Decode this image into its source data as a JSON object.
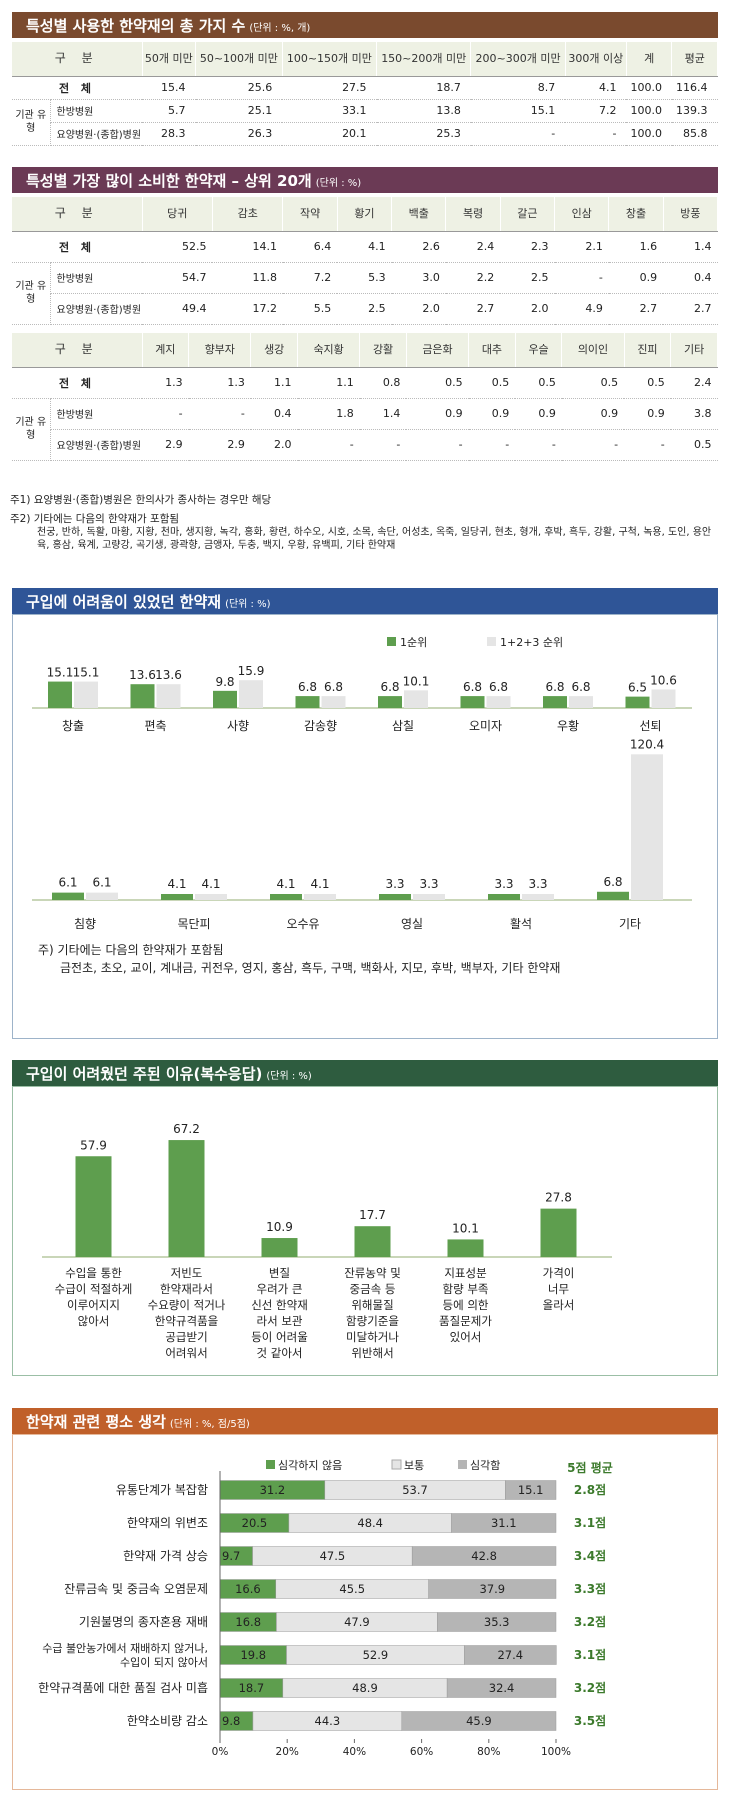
{
  "section1": {
    "title": "특성별 사용한 한약재의 총 가지 수",
    "unit": "(단위 : %, 개)",
    "headers": [
      "구 분",
      "50개 미만",
      "50~100개 미만",
      "100~150개 미만",
      "150~200개 미만",
      "200~300개 미만",
      "300개 이상",
      "계",
      "평균"
    ],
    "group_label": "기관 유형",
    "rows": [
      {
        "label": "전 체",
        "values": [
          "15.4",
          "25.6",
          "27.5",
          "18.7",
          "8.7",
          "4.1",
          "100.0",
          "116.4"
        ]
      },
      {
        "label": "한방병원",
        "values": [
          "5.7",
          "25.1",
          "33.1",
          "13.8",
          "15.1",
          "7.2",
          "100.0",
          "139.3"
        ]
      },
      {
        "label": "요양병원·(종합)병원",
        "values": [
          "28.3",
          "26.3",
          "20.1",
          "25.3",
          "-",
          "-",
          "100.0",
          "85.8"
        ]
      }
    ]
  },
  "section2": {
    "title": "특성별 가장 많이 소비한 한약재 – 상위 20개",
    "unit": "(단위 : %)",
    "group_label": "기관 유형",
    "table_a": {
      "headers": [
        "구 분",
        "당귀",
        "감초",
        "작약",
        "황기",
        "백출",
        "복령",
        "갈근",
        "인삼",
        "창출",
        "방풍"
      ],
      "rows": [
        {
          "label": "전 체",
          "values": [
            "52.5",
            "14.1",
            "6.4",
            "4.1",
            "2.6",
            "2.4",
            "2.3",
            "2.1",
            "1.6",
            "1.4"
          ]
        },
        {
          "label": "한방병원",
          "values": [
            "54.7",
            "11.8",
            "7.2",
            "5.3",
            "3.0",
            "2.2",
            "2.5",
            "-",
            "0.9",
            "0.4"
          ]
        },
        {
          "label": "요양병원·(종합)병원",
          "values": [
            "49.4",
            "17.2",
            "5.5",
            "2.5",
            "2.0",
            "2.7",
            "2.0",
            "4.9",
            "2.7",
            "2.7"
          ]
        }
      ]
    },
    "table_b": {
      "headers": [
        "구 분",
        "계지",
        "향부자",
        "생강",
        "숙지황",
        "강활",
        "금은화",
        "대추",
        "우슬",
        "의이인",
        "진피",
        "기타"
      ],
      "rows": [
        {
          "label": "전 체",
          "values": [
            "1.3",
            "1.3",
            "1.1",
            "1.1",
            "0.8",
            "0.5",
            "0.5",
            "0.5",
            "0.5",
            "0.5",
            "2.4"
          ]
        },
        {
          "label": "한방병원",
          "values": [
            "-",
            "-",
            "0.4",
            "1.8",
            "1.4",
            "0.9",
            "0.9",
            "0.9",
            "0.9",
            "0.9",
            "3.8"
          ]
        },
        {
          "label": "요양병원·(종합)병원",
          "values": [
            "2.9",
            "2.9",
            "2.0",
            "-",
            "-",
            "-",
            "-",
            "-",
            "-",
            "-",
            "0.5"
          ]
        }
      ]
    },
    "note1": "주1) 요양병원·(종합)병원은 한의사가 종사하는 경우만 해당",
    "note2_title": "주2) 기타에는 다음의 한약재가 포함됨",
    "note2_body": "천궁, 반하, 독활, 마황, 지황, 천마, 생지황, 녹각, 홍화, 황련, 하수오, 시호, 소목, 속단, 어성초, 옥죽, 일당귀, 현초, 형개, 후박, 흑두, 강활, 구척, 녹용, 도인, 용안육, 홍삼, 육계, 고량강, 곡기생, 광곽향, 금앵자, 두충, 백지, 우황, 유백피, 기타 한약재"
  },
  "chart_data": [
    {
      "type": "bar",
      "title": "구입에 어려움이 있었던 한약재",
      "unit": "(단위 : %)",
      "legend": [
        "1순위",
        "1+2+3 순위"
      ],
      "categories": [
        "창출",
        "편축",
        "사향",
        "감송향",
        "삼칠",
        "오미자",
        "우황",
        "선퇴",
        "침향",
        "목단피",
        "오수유",
        "영실",
        "활석",
        "기타"
      ],
      "series": [
        {
          "name": "1순위",
          "values": [
            15.1,
            13.6,
            9.8,
            6.8,
            6.8,
            6.8,
            6.8,
            6.5,
            6.1,
            4.1,
            4.1,
            3.3,
            3.3,
            6.8
          ]
        },
        {
          "name": "1+2+3 순위",
          "values": [
            15.1,
            13.6,
            15.9,
            6.8,
            10.1,
            6.8,
            6.8,
            10.6,
            6.1,
            4.1,
            4.1,
            3.3,
            3.3,
            120.4
          ]
        }
      ],
      "value_labels": [
        [
          "15.1",
          "15.1"
        ],
        [
          "13.6",
          "13.6"
        ],
        [
          "9.8",
          "15.9"
        ],
        [
          "6.8",
          "6.8"
        ],
        [
          "6.8",
          "10.1"
        ],
        [
          "6.8",
          "6.8"
        ],
        [
          "6.8",
          "6.8"
        ],
        [
          "6.5",
          "10.6"
        ],
        [
          "6.1",
          "6.1"
        ],
        [
          "4.1",
          "4.1"
        ],
        [
          "4.1",
          "4.1"
        ],
        [
          "3.3",
          "3.3"
        ],
        [
          "3.3",
          "3.3"
        ],
        [
          "6.8",
          "120.4"
        ]
      ],
      "note_title": "주) 기타에는 다음의 한약재가 포함됨",
      "note_body": "금전초, 초오, 교이, 계내금, 귀전우, 영지, 홍삼, 흑두, 구맥, 백화사, 지모, 후박, 백부자, 기타 한약재"
    },
    {
      "type": "bar",
      "title": "구입이 어려웠던 주된 이유(복수응답)",
      "unit": "(단위 : %)",
      "categories": [
        [
          "수입을 통한",
          "수급이 적절하게",
          "이루어지지",
          "않아서"
        ],
        [
          "저빈도",
          "한약재라서",
          "수요량이 적거나",
          "한약규격품을",
          "공급받기",
          "어려워서"
        ],
        [
          "변질",
          "우려가 큰",
          "신선 한약재",
          "라서 보관",
          "등이 어려울",
          "것 같아서"
        ],
        [
          "잔류농약 및",
          "중금속 등",
          "위해물질",
          "함량기준을",
          "미달하거나",
          "위반해서"
        ],
        [
          "지표성분",
          "함량 부족",
          "등에 의한",
          "품질문제가",
          "있어서"
        ],
        [
          "가격이",
          "너무",
          "올라서"
        ]
      ],
      "values": [
        57.9,
        67.2,
        10.9,
        17.7,
        10.1,
        27.8
      ],
      "value_labels": [
        "57.9",
        "67.2",
        "10.9",
        "17.7",
        "10.1",
        "27.8"
      ]
    },
    {
      "type": "bar",
      "stacked": true,
      "orientation": "horizontal",
      "title": "한약재 관련 평소 생각",
      "unit": "(단위 : %, 점/5점)",
      "legend": [
        "심각하지 않음",
        "보통",
        "심각함"
      ],
      "avg_header": "5점 평균",
      "categories": [
        [
          "유통단계가 복잡함"
        ],
        [
          "한약재의 위변조"
        ],
        [
          "한약재 가격 상승"
        ],
        [
          "잔류금속 및 중금속 오염문제"
        ],
        [
          "기원불명의 종자혼용 재배"
        ],
        [
          "수급 불안농가에서 재배하지 않거나,",
          "수입이 되지 않아서"
        ],
        [
          "한약규격품에 대한 품질 검사 미흡"
        ],
        [
          "한약소비량 감소"
        ]
      ],
      "series": [
        {
          "name": "심각하지 않음",
          "values": [
            31.2,
            20.5,
            9.7,
            16.6,
            16.8,
            19.8,
            18.7,
            9.8
          ]
        },
        {
          "name": "보통",
          "values": [
            53.7,
            48.4,
            47.5,
            45.5,
            47.9,
            52.9,
            48.9,
            44.3
          ]
        },
        {
          "name": "심각함",
          "values": [
            15.1,
            31.1,
            42.8,
            37.9,
            35.3,
            27.4,
            32.4,
            45.9
          ]
        }
      ],
      "value_labels": [
        [
          "31.2",
          "53.7",
          "15.1"
        ],
        [
          "20.5",
          "48.4",
          "31.1"
        ],
        [
          "9.7",
          "47.5",
          "42.8"
        ],
        [
          "16.6",
          "45.5",
          "37.9"
        ],
        [
          "16.8",
          "47.9",
          "35.3"
        ],
        [
          "19.8",
          "52.9",
          "27.4"
        ],
        [
          "18.7",
          "48.9",
          "32.4"
        ],
        [
          "9.8",
          "44.3",
          "45.9"
        ]
      ],
      "averages": [
        "2.8점",
        "3.1점",
        "3.4점",
        "3.3점",
        "3.2점",
        "3.1점",
        "3.2점",
        "3.5점"
      ],
      "xlim": [
        0,
        100
      ],
      "ticks": [
        "0%",
        "20%",
        "40%",
        "60%",
        "80%",
        "100%"
      ]
    }
  ],
  "colors": {
    "green": "#5e9e4e",
    "light": "#e5e5e5",
    "gray": "#b5b5b5",
    "avg": "#3c7a2c",
    "baseline": "#c9d6b8"
  }
}
